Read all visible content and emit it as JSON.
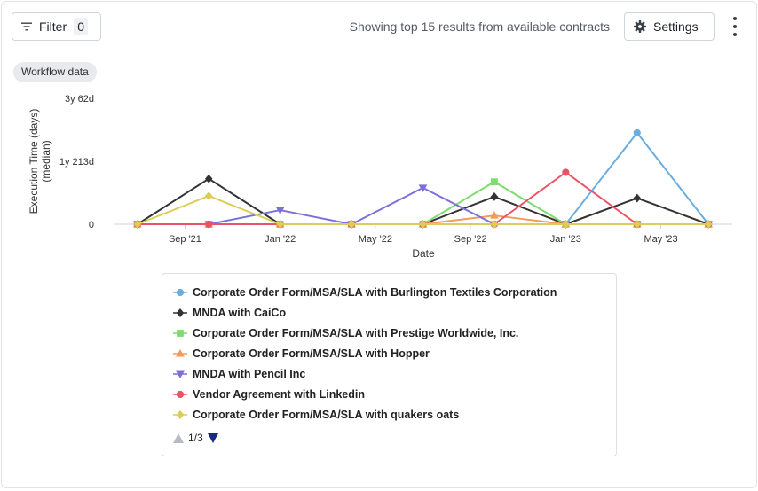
{
  "toolbar": {
    "filter_label": "Filter",
    "filter_count": "0",
    "results_text": "Showing top 15 results from available contracts",
    "settings_label": "Settings"
  },
  "tag": "Workflow data",
  "legend": {
    "pager": "1/3"
  },
  "chart_data": {
    "type": "line",
    "title": "",
    "xlabel": "Date",
    "ylabel": "Execution Time (days) (median)",
    "ylabel_lines": [
      "Execution Time (days)",
      "(median)"
    ],
    "x_ticks": [
      "Sep '21",
      "Jan '22",
      "May '22",
      "Sep '22",
      "Jan '23",
      "May '23"
    ],
    "y_ticks": [
      "0",
      "1y 213d",
      "3y 62d"
    ],
    "x_range": [
      "2021-06",
      "2023-08"
    ],
    "y_range_days": [
      0,
      1157
    ],
    "grid": false,
    "legend_position": "bottom",
    "series": [
      {
        "name": "Corporate Order Form/MSA/SLA with Burlington Textiles Corporation",
        "color": "#6aaee0",
        "marker": "circle",
        "x": [
          "2021-07",
          "2021-10",
          "2022-01",
          "2022-04",
          "2022-07",
          "2022-10",
          "2023-01",
          "2023-04",
          "2023-07"
        ],
        "y": [
          0,
          0,
          0,
          0,
          0,
          0,
          0,
          840,
          0
        ]
      },
      {
        "name": "MNDA with CaiCo",
        "color": "#333333",
        "marker": "diamond",
        "x": [
          "2021-07",
          "2021-10",
          "2022-01",
          "2022-04",
          "2022-07",
          "2022-10",
          "2023-01",
          "2023-04",
          "2023-07"
        ],
        "y": [
          0,
          418,
          0,
          0,
          0,
          253,
          0,
          240,
          0
        ]
      },
      {
        "name": "Corporate Order Form/MSA/SLA with Prestige Worldwide, Inc.",
        "color": "#7ddc6e",
        "marker": "square",
        "x": [
          "2021-07",
          "2021-10",
          "2022-01",
          "2022-04",
          "2022-07",
          "2022-10",
          "2023-01",
          "2023-04",
          "2023-07"
        ],
        "y": [
          0,
          0,
          0,
          0,
          0,
          390,
          0,
          0,
          0
        ]
      },
      {
        "name": "Corporate Order Form/MSA/SLA with Hopper",
        "color": "#f59a57",
        "marker": "triangle-up",
        "x": [
          "2021-07",
          "2021-10",
          "2022-01",
          "2022-04",
          "2022-07",
          "2022-10",
          "2023-01",
          "2023-04",
          "2023-07"
        ],
        "y": [
          0,
          0,
          0,
          0,
          0,
          80,
          0,
          0,
          0
        ]
      },
      {
        "name": "MNDA with Pencil Inc",
        "color": "#7b6fd9",
        "marker": "triangle-down",
        "x": [
          "2021-07",
          "2021-10",
          "2022-01",
          "2022-04",
          "2022-07",
          "2022-10",
          "2023-01",
          "2023-04",
          "2023-07"
        ],
        "y": [
          0,
          0,
          130,
          0,
          335,
          0,
          0,
          0,
          0
        ]
      },
      {
        "name": "Vendor Agreement with Linkedin",
        "color": "#ec5266",
        "marker": "circle",
        "x": [
          "2021-07",
          "2021-10",
          "2022-01",
          "2022-04",
          "2022-07",
          "2022-10",
          "2023-01",
          "2023-04",
          "2023-07"
        ],
        "y": [
          0,
          0,
          0,
          0,
          0,
          0,
          477,
          0,
          0
        ]
      },
      {
        "name": "Corporate Order Form/MSA/SLA with quakers oats",
        "color": "#ddcc55",
        "marker": "diamond",
        "x": [
          "2021-07",
          "2021-10",
          "2022-01",
          "2022-04",
          "2022-07",
          "2022-10",
          "2023-01",
          "2023-04",
          "2023-07"
        ],
        "y": [
          0,
          260,
          0,
          0,
          0,
          0,
          0,
          0,
          0
        ]
      }
    ]
  }
}
